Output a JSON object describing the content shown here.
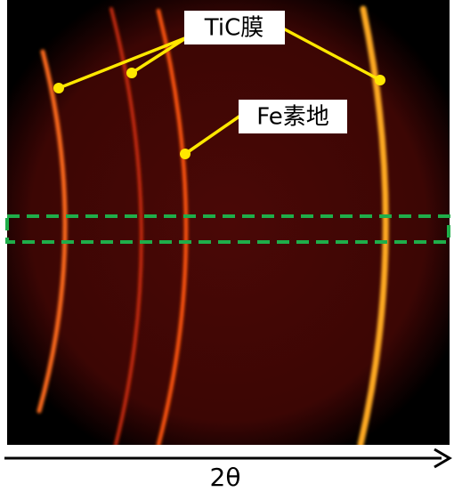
{
  "labels": {
    "tic": "TiC膜",
    "fe": "Fe素地"
  },
  "axis_label": "2θ"
}
